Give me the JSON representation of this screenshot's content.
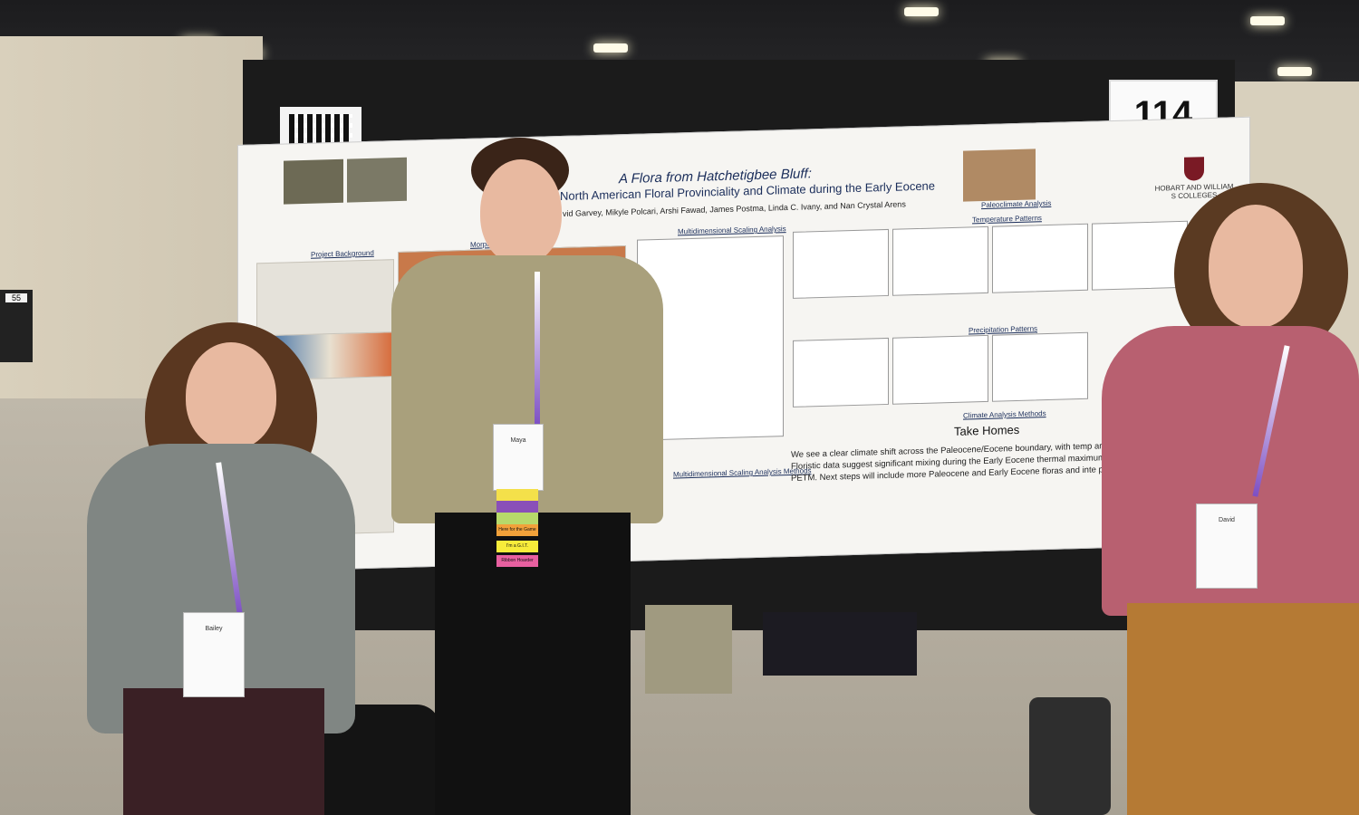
{
  "board_number": "114",
  "poster": {
    "title": "A Flora from Hatchetigbee Bluff:",
    "subtitle": "North American Floral Provinciality and Climate during the Early Eocene",
    "authors": "vid Garvey, Mikyle Polcari, Arshi Fawad, James Postma, Linda C. Ivany, and Nan Crystal Arens",
    "institution": "HOBART AND WILLIAM S COLLEGES",
    "sections": {
      "project_background": "Project Background",
      "morpho": "Morpho",
      "mds": "Multidimensional Scaling Analysis",
      "paleoclimate": "Paleoclimate Analysis",
      "temperature": "Temperature Patterns",
      "precipitation": "Precipitation Patterns",
      "climate_methods": "Climate Analysis Methods",
      "mds_methods": "Multidimensional Scaling Analysis Methods",
      "take_homes": "Take Homes"
    },
    "take_homes_text": "We see a clear climate shift across the Paleocene/Eocene boundary, with temp and precipitation remaining constant. Floristic data suggest significant mixing during the Early Eocene thermal maximum, which may be a byproduct of mig PETM. Next steps will include more Paleocene and Early Eocene floras and inte proxies across the region."
  },
  "badges": {
    "left": {
      "name": "Bailey"
    },
    "middle": {
      "name": "Maya",
      "ribbons": [
        "Here for the Game",
        "I'm a G.I.T.",
        "Ribbon Hoarder"
      ]
    },
    "right": {
      "name": "David"
    }
  },
  "aisle_sign": "55"
}
